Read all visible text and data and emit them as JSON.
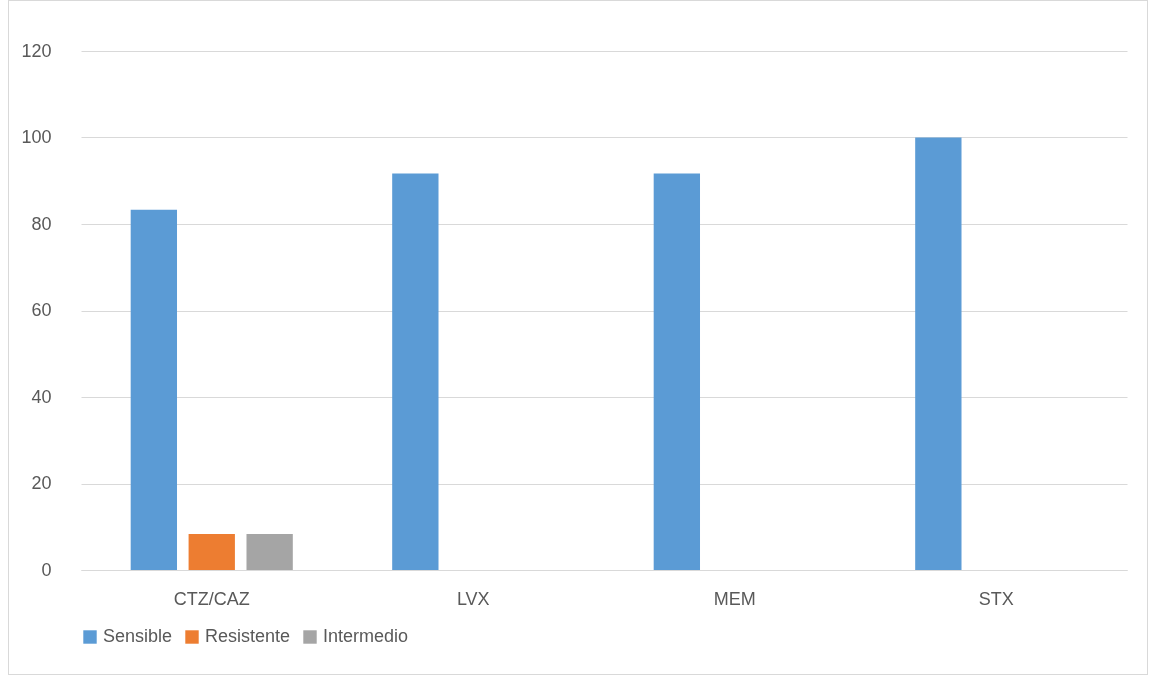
{
  "chart_data": {
    "type": "bar",
    "categories": [
      "CTZ/CAZ",
      "LVX",
      "MEM",
      "STX"
    ],
    "series": [
      {
        "name": "Sensible",
        "color": "#5b9bd5",
        "values": [
          83.3,
          91.7,
          91.7,
          100
        ]
      },
      {
        "name": "Resistente",
        "color": "#ed7d31",
        "values": [
          8.3,
          0,
          0,
          0
        ]
      },
      {
        "name": "Intermedio",
        "color": "#a5a5a5",
        "values": [
          8.3,
          0,
          0,
          0
        ]
      }
    ],
    "ylim": [
      0,
      120
    ],
    "yticks": [
      0,
      20,
      40,
      60,
      80,
      100,
      120
    ],
    "grid": "y",
    "legend": "bottom"
  }
}
